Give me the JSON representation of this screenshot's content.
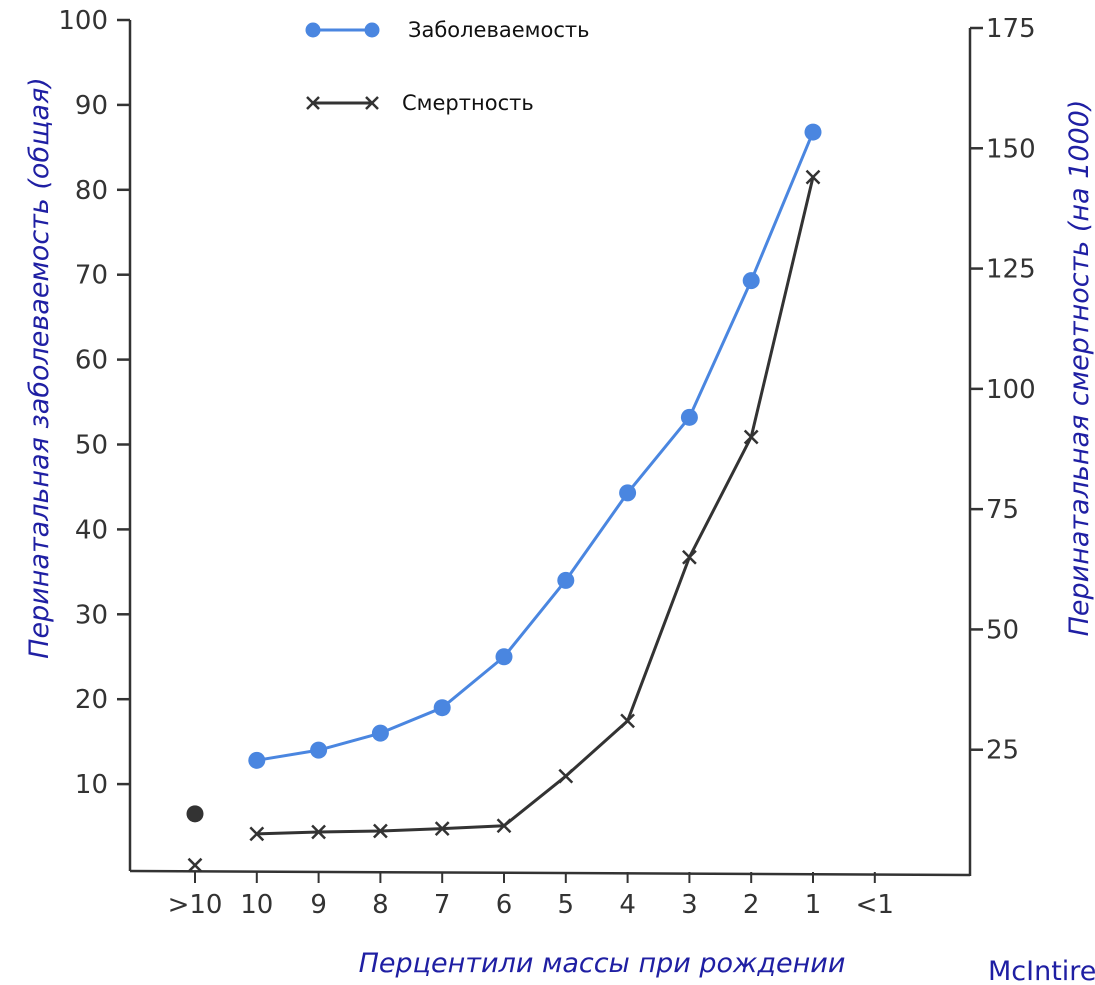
{
  "chart_data": {
    "type": "line",
    "categories": [
      ">10",
      "10",
      "9",
      "8",
      "7",
      "6",
      "5",
      "4",
      "3",
      "2",
      "1",
      "<1"
    ],
    "xlabel": "Перцентили массы при рождении",
    "ylabel": "Перинатальная заболеваемость (общая)",
    "y2label": "Перинатальная смертность (на 1000)",
    "ylim": [
      0,
      100
    ],
    "y2lim": [
      0,
      175
    ],
    "yticks": [
      10,
      20,
      30,
      40,
      50,
      60,
      70,
      80,
      90,
      100
    ],
    "y2ticks": [
      25,
      50,
      75,
      100,
      125,
      150,
      175
    ],
    "grid": false,
    "legend_position": "top-center",
    "series": [
      {
        "name": "Заболеваемость",
        "axis": "left",
        "marker": "circle",
        "color": "#4a86e0",
        "values": [
          6.5,
          12.8,
          14,
          16,
          19,
          25,
          34,
          44.3,
          53.2,
          69.3,
          86.8,
          null
        ],
        "connected_from_index": 1
      },
      {
        "name": "Смертность",
        "axis": "right",
        "marker": "x",
        "color": "#333333",
        "values": [
          1,
          7.5,
          7.9,
          8.1,
          8.6,
          9.2,
          19.5,
          31,
          65,
          90,
          144,
          null
        ],
        "connected_from_index": 1
      }
    ]
  },
  "credit": "McIntire"
}
